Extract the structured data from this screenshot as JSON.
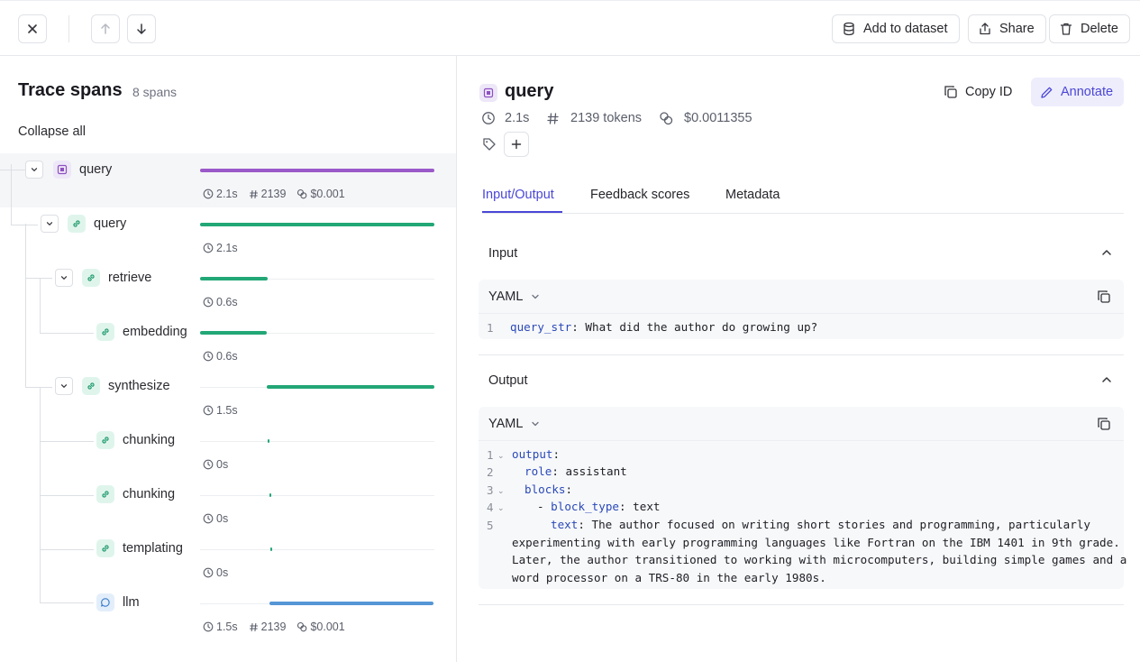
{
  "toolbar": {
    "add_to_dataset": "Add to dataset",
    "share": "Share",
    "delete": "Delete"
  },
  "trace": {
    "title": "Trace spans",
    "count": "8 spans",
    "collapse_all": "Collapse all",
    "spans": [
      {
        "name": "query",
        "type": "chain-root",
        "duration": "2.1s",
        "tokens": "2139",
        "cost": "$0.001",
        "bar_start": 0.0,
        "bar_end": 1.0,
        "color": "#9b59c9"
      },
      {
        "name": "query",
        "type": "chain",
        "duration": "2.1s",
        "bar_start": 0.0,
        "bar_end": 1.0,
        "color": "#22a776"
      },
      {
        "name": "retrieve",
        "type": "chain",
        "duration": "0.6s",
        "bar_start": 0.0,
        "bar_end": 0.29,
        "color": "#22a776"
      },
      {
        "name": "embedding",
        "type": "chain",
        "duration": "0.6s",
        "bar_start": 0.0,
        "bar_end": 0.285,
        "color": "#22a776"
      },
      {
        "name": "synthesize",
        "type": "chain",
        "duration": "1.5s",
        "bar_start": 0.285,
        "bar_end": 1.0,
        "color": "#22a776"
      },
      {
        "name": "chunking",
        "type": "chain",
        "duration": "0s",
        "bar_start": 0.29,
        "bar_end": 0.298,
        "color": "#22a776"
      },
      {
        "name": "chunking",
        "type": "chain",
        "duration": "0s",
        "bar_start": 0.295,
        "bar_end": 0.303,
        "color": "#22a776"
      },
      {
        "name": "templating",
        "type": "chain",
        "duration": "0s",
        "bar_start": 0.3,
        "bar_end": 0.3,
        "color": "#22a776"
      },
      {
        "name": "llm",
        "type": "llm",
        "duration": "1.5s",
        "tokens": "2139",
        "cost": "$0.001",
        "bar_start": 0.296,
        "bar_end": 0.996,
        "color": "#5596d6"
      }
    ]
  },
  "detail": {
    "title": "query",
    "duration": "2.1s",
    "tokens": "2139 tokens",
    "cost": "$0.0011355",
    "copy_id": "Copy ID",
    "annotate": "Annotate",
    "tabs": [
      "Input/Output",
      "Feedback scores",
      "Metadata"
    ],
    "input": {
      "label": "Input",
      "format": "YAML",
      "lines": [
        {
          "n": "1",
          "key": "query_str",
          "value": ": What did the author do growing up?"
        }
      ]
    },
    "output": {
      "label": "Output",
      "format": "YAML",
      "line_numbers": [
        "1",
        "2",
        "3",
        "4",
        "5"
      ],
      "l1_key": "output",
      "l2_key": "role",
      "l2_val": ": assistant",
      "l3_key": "blocks",
      "l4_dash": "- ",
      "l4_key": "block_type",
      "l4_val": ": text",
      "l5_key": "text",
      "l5_val": ": The author focused on writing short stories and programming, particularly",
      "wrap1": "experimenting with early programming languages like Fortran on the IBM 1401 in 9th grade.",
      "wrap2": "Later, the author transitioned to working with microcomputers, building simple games and a",
      "wrap3": "word processor on a TRS-80 in the early 1980s."
    }
  }
}
